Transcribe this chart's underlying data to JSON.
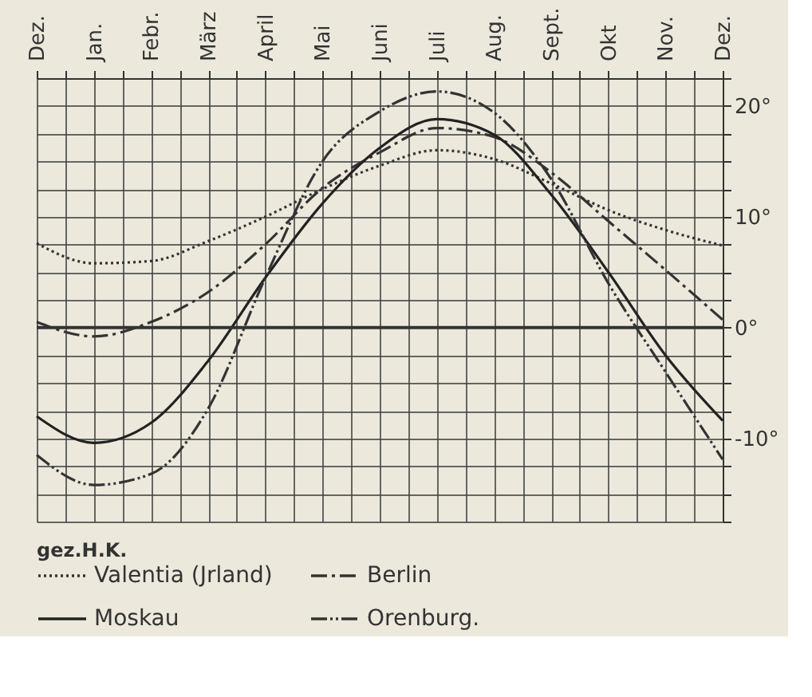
{
  "chart_data": {
    "type": "line",
    "categories": [
      "Dez.",
      "Jan.",
      "Febr.",
      "März",
      "April",
      "Mai",
      "Juni",
      "Juli",
      "Aug.",
      "Sept.",
      "Okt",
      "Nov.",
      "Dez."
    ],
    "series": [
      {
        "name": "Valentia (Jrland)",
        "color": "#333333",
        "line_style": "dotted",
        "values": [
          7.6,
          5.8,
          6.0,
          7.8,
          10.0,
          12.5,
          14.6,
          16.0,
          15.2,
          13.0,
          10.6,
          8.8,
          7.4
        ]
      },
      {
        "name": "Berlin",
        "color": "#333333",
        "line_style": "dashed",
        "values": [
          0.5,
          -0.8,
          0.5,
          3.2,
          7.5,
          12.6,
          15.8,
          18.0,
          17.2,
          14.0,
          9.6,
          5.2,
          0.7
        ]
      },
      {
        "name": "Moskau",
        "color": "#222222",
        "line_style": "solid",
        "values": [
          -8.0,
          -10.4,
          -8.6,
          -3.0,
          4.5,
          11.2,
          16.2,
          18.8,
          17.4,
          12.0,
          5.0,
          -2.5,
          -8.4
        ]
      },
      {
        "name": "Orenburg.",
        "color": "#333333",
        "line_style": "dashed",
        "values": [
          -11.5,
          -14.2,
          -13.2,
          -7.3,
          4.5,
          15.0,
          19.5,
          21.3,
          19.4,
          13.4,
          4.0,
          -4.0,
          -11.9
        ]
      }
    ],
    "ylim": [
      -17.5,
      22.5
    ],
    "yticks": [
      {
        "value": -17.5,
        "label": null
      },
      {
        "value": -15,
        "label": null
      },
      {
        "value": -12.5,
        "label": null
      },
      {
        "value": -10,
        "label": "-10°"
      },
      {
        "value": -7.5,
        "label": null
      },
      {
        "value": -5,
        "label": null
      },
      {
        "value": -2.5,
        "label": null
      },
      {
        "value": 0,
        "label": "0°"
      },
      {
        "value": 2.5,
        "label": null
      },
      {
        "value": 5,
        "label": null
      },
      {
        "value": 7.5,
        "label": null
      },
      {
        "value": 10,
        "label": "10°"
      },
      {
        "value": 12.5,
        "label": null
      },
      {
        "value": 15,
        "label": null
      },
      {
        "value": 17.5,
        "label": null
      },
      {
        "value": 20,
        "label": "20°"
      },
      {
        "value": 22.5,
        "label": null
      }
    ],
    "grid": true,
    "legend": "bottom",
    "marker": "none",
    "ref_lines": [
      {
        "axis": "y",
        "value": 0,
        "label": null,
        "color": "#333333",
        "line_style": "solid"
      }
    ],
    "annotations": [
      "gez.H.K."
    ]
  }
}
